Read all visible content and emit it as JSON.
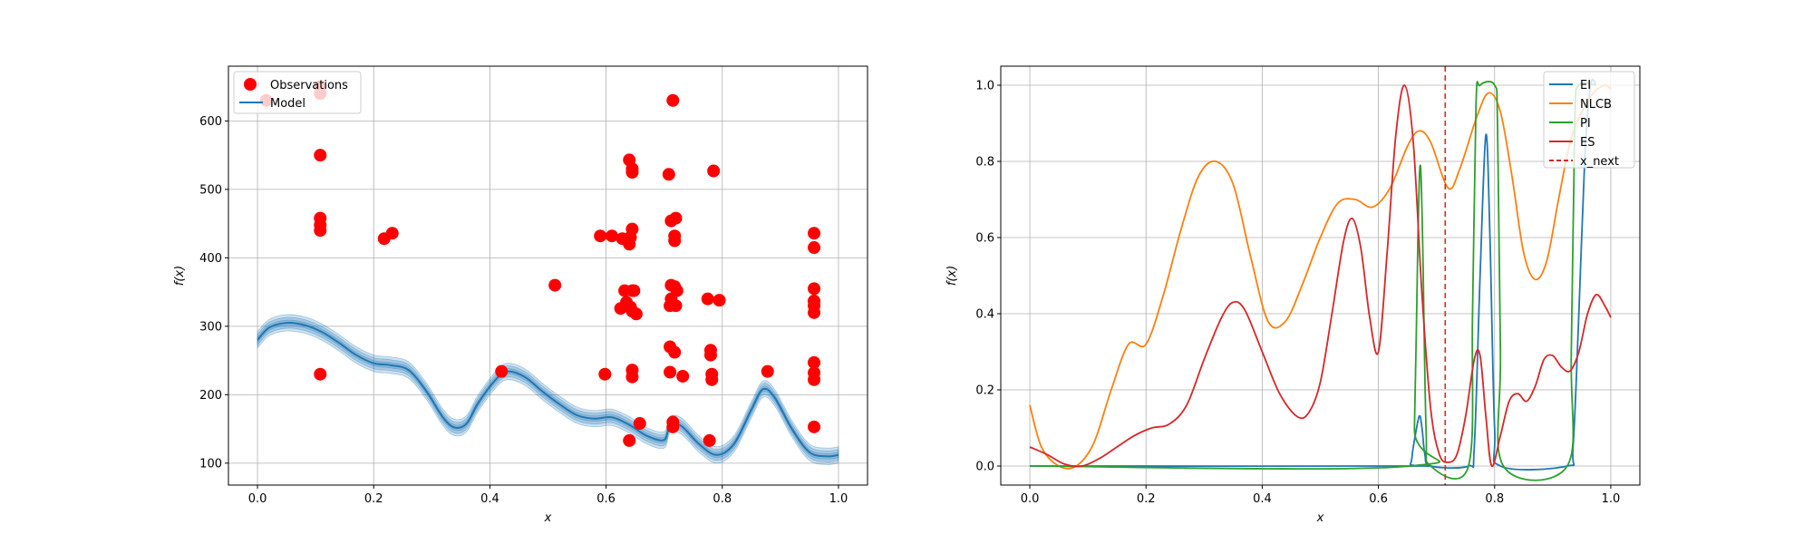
{
  "chart_data": [
    {
      "type": "scatter+line",
      "xlabel": "x",
      "ylabel": "f(x)",
      "xlim": [
        -0.05,
        1.05
      ],
      "ylim": [
        68,
        680
      ],
      "xticks": [
        0.0,
        0.2,
        0.4,
        0.6,
        0.8,
        1.0
      ],
      "xtick_labels": [
        "0.0",
        "0.2",
        "0.4",
        "0.6",
        "0.8",
        "1.0"
      ],
      "yticks": [
        100,
        200,
        300,
        400,
        500,
        600
      ],
      "ytick_labels": [
        "100",
        "200",
        "300",
        "400",
        "500",
        "600"
      ],
      "grid": true,
      "legend": {
        "position": "top-left",
        "entries": [
          "Observations",
          "Model"
        ]
      },
      "colors": {
        "observations": "#ff0000",
        "model": "#1f77b4",
        "band": "#1f77b4"
      },
      "observations": [
        [
          0.015,
          630
        ],
        [
          0.108,
          640
        ],
        [
          0.108,
          650
        ],
        [
          0.108,
          550
        ],
        [
          0.108,
          458
        ],
        [
          0.108,
          448
        ],
        [
          0.108,
          440
        ],
        [
          0.108,
          230
        ],
        [
          0.218,
          428
        ],
        [
          0.232,
          436
        ],
        [
          0.42,
          234
        ],
        [
          0.512,
          360
        ],
        [
          0.59,
          432
        ],
        [
          0.598,
          230
        ],
        [
          0.61,
          432
        ],
        [
          0.625,
          326
        ],
        [
          0.628,
          428
        ],
        [
          0.632,
          352
        ],
        [
          0.635,
          335
        ],
        [
          0.638,
          426
        ],
        [
          0.64,
          543
        ],
        [
          0.64,
          420
        ],
        [
          0.642,
          430
        ],
        [
          0.642,
          328
        ],
        [
          0.645,
          530
        ],
        [
          0.645,
          525
        ],
        [
          0.645,
          442
        ],
        [
          0.645,
          352
        ],
        [
          0.645,
          322
        ],
        [
          0.645,
          236
        ],
        [
          0.645,
          226
        ],
        [
          0.648,
          352
        ],
        [
          0.64,
          133
        ],
        [
          0.652,
          318
        ],
        [
          0.658,
          158
        ],
        [
          0.708,
          522
        ],
        [
          0.71,
          330
        ],
        [
          0.71,
          270
        ],
        [
          0.71,
          233
        ],
        [
          0.712,
          454
        ],
        [
          0.712,
          360
        ],
        [
          0.712,
          340
        ],
        [
          0.715,
          630
        ],
        [
          0.715,
          160
        ],
        [
          0.715,
          153
        ],
        [
          0.718,
          432
        ],
        [
          0.718,
          425
        ],
        [
          0.718,
          358
        ],
        [
          0.718,
          262
        ],
        [
          0.72,
          458
        ],
        [
          0.72,
          330
        ],
        [
          0.722,
          352
        ],
        [
          0.732,
          227
        ],
        [
          0.775,
          340
        ],
        [
          0.778,
          133
        ],
        [
          0.78,
          265
        ],
        [
          0.78,
          258
        ],
        [
          0.782,
          230
        ],
        [
          0.782,
          222
        ],
        [
          0.785,
          527
        ],
        [
          0.795,
          338
        ],
        [
          0.878,
          234
        ],
        [
          0.958,
          436
        ],
        [
          0.958,
          415
        ],
        [
          0.958,
          355
        ],
        [
          0.958,
          337
        ],
        [
          0.958,
          330
        ],
        [
          0.958,
          320
        ],
        [
          0.958,
          247
        ],
        [
          0.958,
          232
        ],
        [
          0.958,
          222
        ],
        [
          0.958,
          153
        ]
      ],
      "model_mean": [
        [
          0.0,
          280
        ],
        [
          0.02,
          298
        ],
        [
          0.05,
          305
        ],
        [
          0.08,
          302
        ],
        [
          0.11,
          292
        ],
        [
          0.14,
          276
        ],
        [
          0.17,
          258
        ],
        [
          0.2,
          246
        ],
        [
          0.23,
          243
        ],
        [
          0.26,
          236
        ],
        [
          0.29,
          206
        ],
        [
          0.32,
          166
        ],
        [
          0.34,
          152
        ],
        [
          0.36,
          158
        ],
        [
          0.38,
          188
        ],
        [
          0.41,
          222
        ],
        [
          0.43,
          234
        ],
        [
          0.46,
          226
        ],
        [
          0.49,
          205
        ],
        [
          0.52,
          186
        ],
        [
          0.55,
          170
        ],
        [
          0.58,
          165
        ],
        [
          0.61,
          167
        ],
        [
          0.64,
          156
        ],
        [
          0.67,
          140
        ],
        [
          0.7,
          134
        ],
        [
          0.71,
          156
        ],
        [
          0.73,
          154
        ],
        [
          0.76,
          128
        ],
        [
          0.79,
          112
        ],
        [
          0.82,
          128
        ],
        [
          0.85,
          178
        ],
        [
          0.87,
          208
        ],
        [
          0.89,
          196
        ],
        [
          0.92,
          150
        ],
        [
          0.95,
          116
        ],
        [
          0.98,
          110
        ],
        [
          1.0,
          112
        ]
      ],
      "model_band_halfwidth": 12
    },
    {
      "type": "line",
      "xlabel": "x",
      "ylabel": "f(x)",
      "xlim": [
        -0.05,
        1.05
      ],
      "ylim": [
        -0.05,
        1.05
      ],
      "xticks": [
        0.0,
        0.2,
        0.4,
        0.6,
        0.8,
        1.0
      ],
      "xtick_labels": [
        "0.0",
        "0.2",
        "0.4",
        "0.6",
        "0.8",
        "1.0"
      ],
      "yticks": [
        0.0,
        0.2,
        0.4,
        0.6,
        0.8,
        1.0
      ],
      "ytick_labels": [
        "0.0",
        "0.2",
        "0.4",
        "0.6",
        "0.8",
        "1.0"
      ],
      "grid": true,
      "legend": {
        "position": "top-right"
      },
      "x_next": 0.715,
      "x_next_color": "#d62728",
      "series": [
        {
          "name": "EI",
          "color": "#1f77b4",
          "points": [
            [
              0.0,
              0
            ],
            [
              0.64,
              0
            ],
            [
              0.655,
              0.005
            ],
            [
              0.66,
              0.05
            ],
            [
              0.67,
              0.13
            ],
            [
              0.675,
              0.1
            ],
            [
              0.68,
              0.03
            ],
            [
              0.69,
              0
            ],
            [
              0.755,
              0
            ],
            [
              0.765,
              0.05
            ],
            [
              0.775,
              0.5
            ],
            [
              0.785,
              0.87
            ],
            [
              0.792,
              0.6
            ],
            [
              0.8,
              0.1
            ],
            [
              0.81,
              0
            ],
            [
              0.925,
              0
            ],
            [
              0.935,
              0.05
            ],
            [
              0.945,
              0.4
            ],
            [
              0.955,
              0.8
            ],
            [
              0.965,
              1.0
            ],
            [
              0.975,
              1.0
            ]
          ]
        },
        {
          "name": "NLCB",
          "color": "#ff7f0e",
          "points": [
            [
              0.0,
              0.16
            ],
            [
              0.02,
              0.05
            ],
            [
              0.05,
              0.0
            ],
            [
              0.08,
              0.0
            ],
            [
              0.11,
              0.06
            ],
            [
              0.14,
              0.2
            ],
            [
              0.17,
              0.32
            ],
            [
              0.2,
              0.32
            ],
            [
              0.23,
              0.45
            ],
            [
              0.26,
              0.62
            ],
            [
              0.29,
              0.76
            ],
            [
              0.32,
              0.8
            ],
            [
              0.35,
              0.74
            ],
            [
              0.38,
              0.55
            ],
            [
              0.41,
              0.38
            ],
            [
              0.44,
              0.38
            ],
            [
              0.47,
              0.48
            ],
            [
              0.5,
              0.6
            ],
            [
              0.53,
              0.69
            ],
            [
              0.56,
              0.7
            ],
            [
              0.59,
              0.68
            ],
            [
              0.62,
              0.73
            ],
            [
              0.65,
              0.84
            ],
            [
              0.67,
              0.88
            ],
            [
              0.69,
              0.85
            ],
            [
              0.72,
              0.73
            ],
            [
              0.74,
              0.78
            ],
            [
              0.77,
              0.92
            ],
            [
              0.79,
              0.98
            ],
            [
              0.81,
              0.93
            ],
            [
              0.83,
              0.76
            ],
            [
              0.85,
              0.56
            ],
            [
              0.87,
              0.49
            ],
            [
              0.89,
              0.54
            ],
            [
              0.91,
              0.7
            ],
            [
              0.93,
              0.85
            ],
            [
              0.95,
              0.93
            ],
            [
              0.97,
              0.98
            ],
            [
              0.99,
              1.0
            ],
            [
              1.0,
              0.99
            ]
          ]
        },
        {
          "name": "PI",
          "color": "#2ca02c",
          "points": [
            [
              0.0,
              0
            ],
            [
              0.655,
              0
            ],
            [
              0.662,
              0.1
            ],
            [
              0.668,
              0.6
            ],
            [
              0.672,
              0.79
            ],
            [
              0.676,
              0.6
            ],
            [
              0.682,
              0.1
            ],
            [
              0.69,
              0
            ],
            [
              0.755,
              0
            ],
            [
              0.762,
              0.4
            ],
            [
              0.768,
              0.95
            ],
            [
              0.775,
              1.0
            ],
            [
              0.8,
              1.0
            ],
            [
              0.805,
              0.9
            ],
            [
              0.81,
              0.3
            ],
            [
              0.815,
              0
            ],
            [
              0.925,
              0
            ],
            [
              0.932,
              0.3
            ],
            [
              0.938,
              0.9
            ],
            [
              0.945,
              1.0
            ],
            [
              0.975,
              1.0
            ]
          ]
        },
        {
          "name": "ES",
          "color": "#d62728",
          "points": [
            [
              0.0,
              0.05
            ],
            [
              0.03,
              0.03
            ],
            [
              0.06,
              0.005
            ],
            [
              0.09,
              0.0
            ],
            [
              0.12,
              0.02
            ],
            [
              0.15,
              0.05
            ],
            [
              0.18,
              0.08
            ],
            [
              0.21,
              0.1
            ],
            [
              0.24,
              0.11
            ],
            [
              0.27,
              0.16
            ],
            [
              0.3,
              0.28
            ],
            [
              0.33,
              0.39
            ],
            [
              0.35,
              0.43
            ],
            [
              0.37,
              0.41
            ],
            [
              0.4,
              0.3
            ],
            [
              0.43,
              0.19
            ],
            [
              0.46,
              0.13
            ],
            [
              0.48,
              0.14
            ],
            [
              0.5,
              0.22
            ],
            [
              0.52,
              0.4
            ],
            [
              0.54,
              0.59
            ],
            [
              0.555,
              0.65
            ],
            [
              0.57,
              0.57
            ],
            [
              0.585,
              0.39
            ],
            [
              0.6,
              0.3
            ],
            [
              0.615,
              0.56
            ],
            [
              0.63,
              0.87
            ],
            [
              0.645,
              1.0
            ],
            [
              0.66,
              0.85
            ],
            [
              0.675,
              0.45
            ],
            [
              0.69,
              0.15
            ],
            [
              0.705,
              0.03
            ],
            [
              0.72,
              0.01
            ],
            [
              0.735,
              0.03
            ],
            [
              0.75,
              0.13
            ],
            [
              0.765,
              0.28
            ],
            [
              0.775,
              0.29
            ],
            [
              0.785,
              0.13
            ],
            [
              0.795,
              0.0
            ],
            [
              0.81,
              0.08
            ],
            [
              0.825,
              0.17
            ],
            [
              0.84,
              0.19
            ],
            [
              0.855,
              0.17
            ],
            [
              0.87,
              0.21
            ],
            [
              0.885,
              0.28
            ],
            [
              0.9,
              0.29
            ],
            [
              0.915,
              0.26
            ],
            [
              0.93,
              0.25
            ],
            [
              0.945,
              0.3
            ],
            [
              0.96,
              0.4
            ],
            [
              0.975,
              0.45
            ],
            [
              0.99,
              0.42
            ],
            [
              1.0,
              0.39
            ]
          ]
        }
      ],
      "legend_entries": [
        "EI",
        "NLCB",
        "PI",
        "ES",
        "x_next"
      ]
    }
  ]
}
